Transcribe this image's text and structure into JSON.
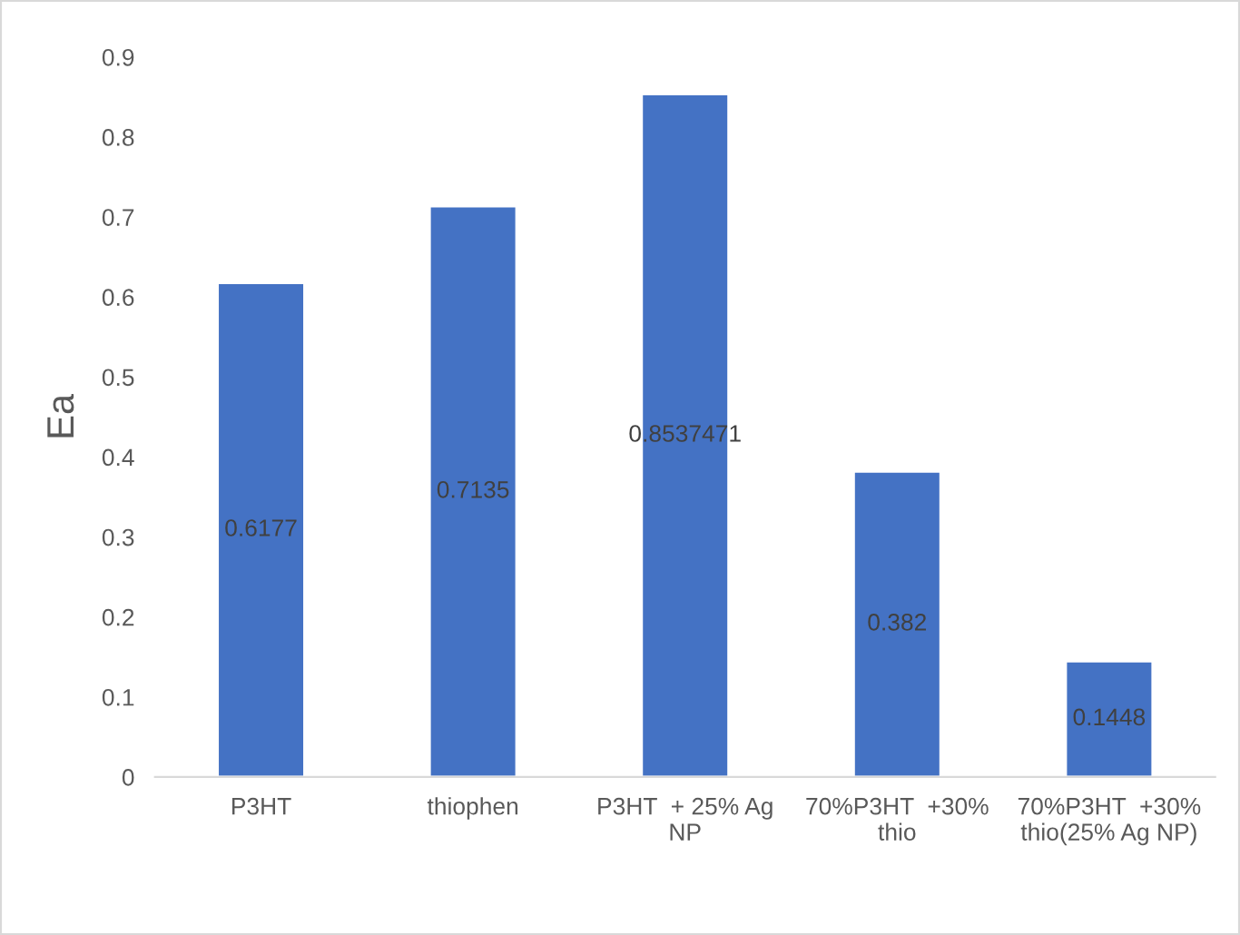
{
  "chart_data": {
    "type": "bar",
    "ylabel": "Ea",
    "categories": [
      "P3HT",
      "thiophen",
      "P3HT  + 25% Ag\nNP",
      "70%P3HT  +30%\nthio",
      "70%P3HT  +30%\nthio(25% Ag NP)"
    ],
    "values": [
      0.6177,
      0.7135,
      0.8537471,
      0.382,
      0.1448
    ],
    "color": "#4472c4",
    "ylim": [
      0,
      0.9
    ],
    "yticks": [
      0,
      0.1,
      0.2,
      0.3,
      0.4,
      0.5,
      0.6,
      0.7,
      0.8,
      0.9
    ],
    "data_labels": true,
    "grid": false,
    "legend": false
  }
}
